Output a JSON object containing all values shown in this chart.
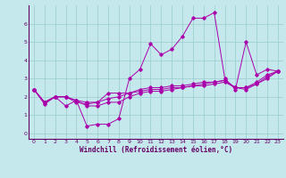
{
  "xlabel": "Windchill (Refroidissement éolien,°C)",
  "background_color": "#c5e8ed",
  "line_color": "#aa00aa",
  "grid_color": "#99cccc",
  "xlim": [
    -0.5,
    23.5
  ],
  "ylim": [
    -0.3,
    7.0
  ],
  "yticks": [
    0,
    1,
    2,
    3,
    4,
    5,
    6
  ],
  "xticks": [
    0,
    1,
    2,
    3,
    4,
    5,
    6,
    7,
    8,
    9,
    10,
    11,
    12,
    13,
    14,
    15,
    16,
    17,
    18,
    19,
    20,
    21,
    22,
    23
  ],
  "line1_y": [
    2.4,
    1.6,
    2.0,
    1.5,
    1.8,
    0.4,
    0.5,
    0.5,
    0.8,
    3.0,
    3.5,
    4.9,
    4.3,
    4.6,
    5.3,
    6.3,
    6.3,
    6.6,
    3.0,
    2.4,
    5.0,
    3.2,
    3.5,
    3.4
  ],
  "line2_y": [
    2.4,
    1.7,
    2.0,
    2.0,
    1.7,
    1.6,
    1.7,
    2.2,
    2.2,
    2.2,
    2.4,
    2.5,
    2.5,
    2.6,
    2.6,
    2.7,
    2.8,
    2.8,
    2.9,
    2.5,
    2.5,
    2.8,
    3.2,
    3.4
  ],
  "line3_y": [
    2.4,
    1.7,
    2.0,
    2.0,
    1.8,
    1.7,
    1.7,
    1.9,
    2.0,
    2.2,
    2.3,
    2.4,
    2.4,
    2.5,
    2.5,
    2.6,
    2.6,
    2.7,
    2.8,
    2.5,
    2.5,
    2.7,
    3.0,
    3.4
  ],
  "line4_y": [
    2.4,
    1.7,
    2.0,
    2.0,
    1.8,
    1.5,
    1.5,
    1.7,
    1.7,
    2.0,
    2.2,
    2.3,
    2.3,
    2.4,
    2.5,
    2.6,
    2.7,
    2.8,
    2.9,
    2.5,
    2.4,
    2.7,
    3.1,
    3.4
  ],
  "tick_fontsize": 4.5,
  "xlabel_fontsize": 5.5,
  "tick_color": "#660066",
  "spine_color": "#660066"
}
